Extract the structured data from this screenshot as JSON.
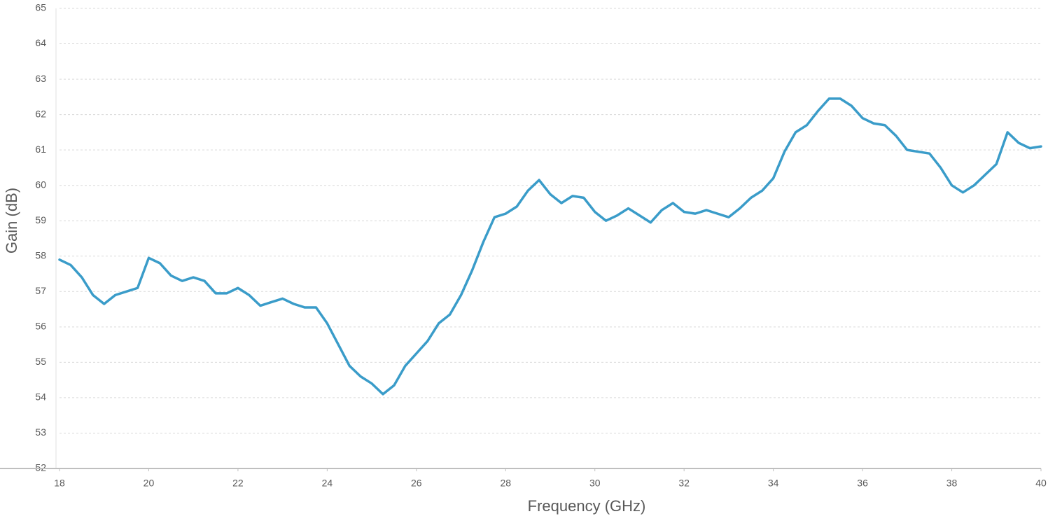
{
  "chart_data": {
    "type": "line",
    "x_label": "Frequency (GHz)",
    "y_label": "Gain  (dB)",
    "x": [
      18,
      18.25,
      18.5,
      18.75,
      19,
      19.25,
      19.5,
      19.75,
      20,
      20.25,
      20.5,
      20.75,
      21,
      21.25,
      21.5,
      21.75,
      22,
      22.25,
      22.5,
      22.75,
      23,
      23.25,
      23.5,
      23.75,
      24,
      24.25,
      24.5,
      24.75,
      25,
      25.25,
      25.5,
      25.75,
      26,
      26.25,
      26.5,
      26.75,
      27,
      27.25,
      27.5,
      27.75,
      28,
      28.25,
      28.5,
      28.75,
      29,
      29.25,
      29.5,
      29.75,
      30,
      30.25,
      30.5,
      30.75,
      31,
      31.25,
      31.5,
      31.75,
      32,
      32.25,
      32.5,
      32.75,
      33,
      33.25,
      33.5,
      33.75,
      34,
      34.25,
      34.5,
      34.75,
      35,
      35.25,
      35.5,
      35.75,
      36,
      36.25,
      36.5,
      36.75,
      37,
      37.25,
      37.5,
      37.75,
      38,
      38.25,
      38.5,
      38.75,
      39,
      39.25,
      39.5,
      39.75,
      40
    ],
    "series": [
      {
        "name": "Gain",
        "color": "#3a9cc9",
        "values": [
          57.9,
          57.75,
          57.4,
          56.9,
          56.65,
          56.9,
          57.0,
          57.1,
          57.95,
          57.8,
          57.45,
          57.3,
          57.4,
          57.3,
          56.95,
          56.95,
          57.1,
          56.9,
          56.6,
          56.7,
          56.8,
          56.65,
          56.55,
          56.55,
          56.1,
          55.5,
          54.9,
          54.6,
          54.4,
          54.1,
          54.35,
          54.9,
          55.25,
          55.6,
          56.1,
          56.35,
          56.9,
          57.6,
          58.4,
          59.1,
          59.2,
          59.4,
          59.85,
          60.15,
          59.75,
          59.5,
          59.7,
          59.65,
          59.25,
          59.0,
          59.15,
          59.35,
          59.15,
          58.95,
          59.3,
          59.5,
          59.25,
          59.2,
          59.3,
          59.2,
          59.1,
          59.35,
          59.65,
          59.85,
          60.2,
          60.95,
          61.5,
          61.7,
          62.1,
          62.45,
          62.45,
          62.25,
          61.9,
          61.75,
          61.7,
          61.4,
          61.0,
          60.95,
          60.9,
          60.5,
          60.0,
          59.8,
          60.0,
          60.3,
          60.6,
          61.5,
          61.2,
          61.05,
          61.1
        ]
      }
    ],
    "xlim": [
      18,
      40
    ],
    "xticks": [
      18,
      20,
      22,
      24,
      26,
      28,
      30,
      32,
      34,
      36,
      38,
      40
    ],
    "ylim": [
      52,
      65
    ],
    "yticks": [
      52,
      53,
      54,
      55,
      56,
      57,
      58,
      59,
      60,
      61,
      62,
      63,
      64,
      65
    ],
    "grid": true
  }
}
